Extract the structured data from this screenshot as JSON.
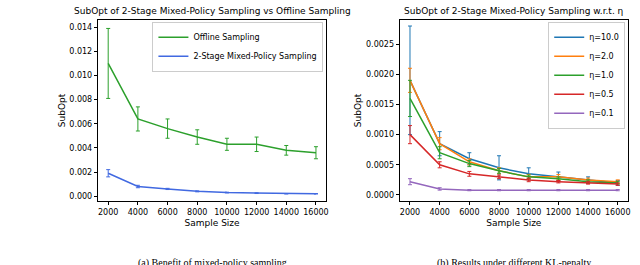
{
  "chart_data": [
    {
      "type": "line",
      "title": "SubOpt of 2-Stage Mixed-Policy Sampling vs Offline Sampling",
      "caption": "(a) Benefit of mixed-policy sampling",
      "x_label": "Sample Size",
      "y_label": "SubOpt",
      "x": [
        2000,
        4000,
        6000,
        8000,
        10000,
        12000,
        14000,
        16000
      ],
      "series": [
        {
          "name": "Offline Sampling",
          "color": "#2ca02c",
          "values": [
            0.011,
            0.0064,
            0.0056,
            0.0049,
            0.0043,
            0.0043,
            0.0038,
            0.0036
          ],
          "errors": [
            0.0029,
            0.001,
            0.0008,
            0.0006,
            0.0005,
            0.0006,
            0.0004,
            0.0005
          ]
        },
        {
          "name": "2-Stage Mixed-Policy Sampling",
          "color": "#4169e1",
          "values": [
            0.0019,
            0.0008,
            0.0006,
            0.0004,
            0.0003,
            0.00025,
            0.0002,
            0.0002
          ],
          "errors": [
            0.0003,
            0.0001,
            5e-05,
            4e-05,
            3e-05,
            3e-05,
            2e-05,
            2e-05
          ]
        }
      ],
      "xlim": [
        1300,
        16700
      ],
      "xticks": [
        2000,
        4000,
        6000,
        8000,
        10000,
        12000,
        14000,
        16000
      ],
      "ylim": [
        -0.0004,
        0.0146
      ],
      "yticks": [
        {
          "value": 0,
          "label": "0.000"
        },
        {
          "value": 0.002,
          "label": "0.002"
        },
        {
          "value": 0.004,
          "label": "0.004"
        },
        {
          "value": 0.006,
          "label": "0.006"
        },
        {
          "value": 0.008,
          "label": "0.008"
        },
        {
          "value": 0.01,
          "label": "0.010"
        },
        {
          "value": 0.012,
          "label": "0.012"
        },
        {
          "value": 0.014,
          "label": "0.014"
        }
      ],
      "grid": false,
      "legend": "upper right"
    },
    {
      "type": "line",
      "title": "SubOpt of 2-Stage Mixed-Policy Sampling w.r.t. η",
      "caption": "(b) Results under different KL-penalty",
      "x_label": "Sample Size",
      "y_label": "SubOpt",
      "x": [
        2000,
        4000,
        6000,
        8000,
        10000,
        12000,
        14000,
        16000
      ],
      "series": [
        {
          "name": "η=10.0",
          "color": "#1f77b4",
          "values": [
            0.0019,
            0.00085,
            0.0006,
            0.00045,
            0.00035,
            0.0003,
            0.00025,
            0.0002
          ],
          "errors": [
            0.0009,
            0.0002,
            0.0001,
            0.0002,
            0.0001,
            8e-05,
            5e-05,
            4e-05
          ]
        },
        {
          "name": "η=2.0",
          "color": "#ff7f0e",
          "values": [
            0.0019,
            0.00085,
            0.00055,
            0.0004,
            0.0003,
            0.0003,
            0.00025,
            0.00022
          ],
          "errors": [
            0.0002,
            0.0001,
            5e-05,
            5e-05,
            4e-05,
            4e-05,
            3e-05,
            3e-05
          ]
        },
        {
          "name": "η=1.0",
          "color": "#2ca02c",
          "values": [
            0.0016,
            0.0007,
            0.00052,
            0.0004,
            0.0003,
            0.00027,
            0.00022,
            0.0002
          ],
          "errors": [
            0.0003,
            0.0001,
            5e-05,
            4e-05,
            3e-05,
            3e-05,
            3e-05,
            2e-05
          ]
        },
        {
          "name": "η=0.5",
          "color": "#d62728",
          "values": [
            0.001,
            0.0005,
            0.00035,
            0.0003,
            0.00025,
            0.00022,
            0.0002,
            0.00018
          ],
          "errors": [
            0.00015,
            5e-05,
            4e-05,
            3e-05,
            3e-05,
            2e-05,
            2e-05,
            2e-05
          ]
        },
        {
          "name": "η=0.1",
          "color": "#9467bd",
          "values": [
            0.00022,
            0.0001,
            8e-05,
            8e-05,
            8e-05,
            8e-05,
            8e-05,
            8e-05
          ],
          "errors": [
            5e-05,
            2e-05,
            1e-05,
            1e-05,
            1e-05,
            1e-05,
            1e-05,
            1e-05
          ]
        }
      ],
      "xlim": [
        1300,
        16700
      ],
      "xticks": [
        2000,
        4000,
        6000,
        8000,
        10000,
        12000,
        14000,
        16000
      ],
      "ylim": [
        -0.0001,
        0.0029
      ],
      "yticks": [
        {
          "value": 0,
          "label": "0.0000"
        },
        {
          "value": 0.0005,
          "label": "0.0005"
        },
        {
          "value": 0.001,
          "label": "0.0010"
        },
        {
          "value": 0.0015,
          "label": "0.0015"
        },
        {
          "value": 0.002,
          "label": "0.0020"
        },
        {
          "value": 0.0025,
          "label": "0.0025"
        }
      ],
      "grid": false,
      "legend": "upper right"
    }
  ]
}
